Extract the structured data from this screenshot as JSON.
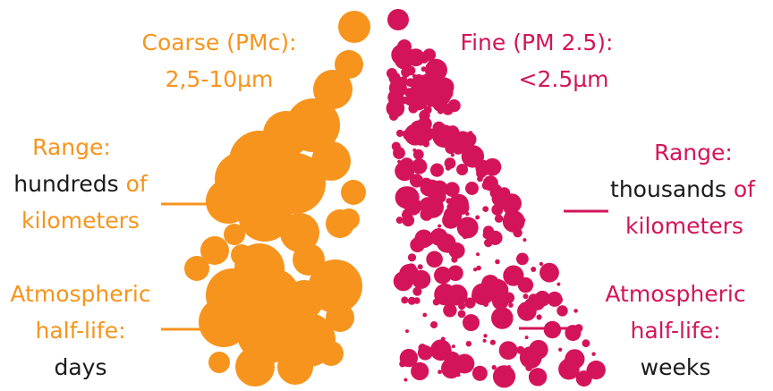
{
  "colors": {
    "coarse": "#f7941d",
    "fine": "#d4145a",
    "text": "#1a1a1a"
  },
  "coarse": {
    "title": "Coarse (PMc):",
    "size": "2,5-10µm",
    "range_label": "Range:",
    "range_value": "hundreds",
    "range_of": "of",
    "range_unit": "kilometers",
    "halflife_label_1": "Atmospheric",
    "halflife_label_2": "half-life:",
    "halflife_value": "days"
  },
  "fine": {
    "title": "Fine (PM 2.5):",
    "size": "<2.5µm",
    "range_label": "Range:",
    "range_value": "thousands",
    "range_of": "of",
    "range_unit": "kilometers",
    "halflife_label_1": "Atmospheric",
    "halflife_label_2": "half-life:",
    "halflife_value": "weeks"
  }
}
